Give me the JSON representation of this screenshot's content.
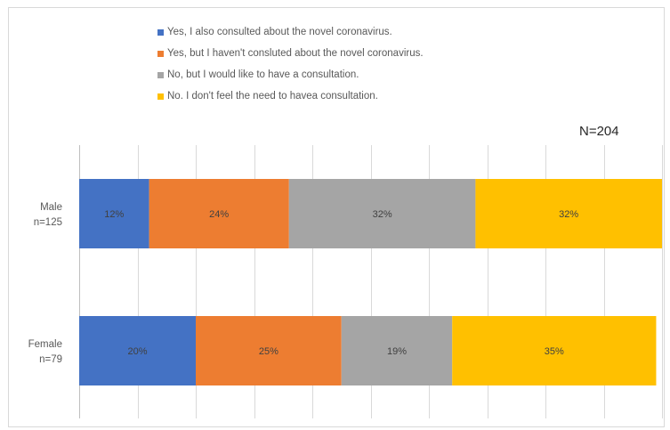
{
  "chart_data": {
    "type": "bar",
    "orientation": "horizontal",
    "stacked": true,
    "percent_stacked": true,
    "annotation": "N=204",
    "categories": [
      "Male\nn=125",
      "Female\nn=79"
    ],
    "series": [
      {
        "name": "Yes, I also consulted about the novel coronavirus.",
        "color": "#4472c4",
        "values": [
          12,
          20
        ]
      },
      {
        "name": "Yes, but I haven't consluted about the novel coronavirus.",
        "color": "#ed7d31",
        "values": [
          24,
          25
        ]
      },
      {
        "name": "No, but I would like to have a consultation.",
        "color": "#a5a5a5",
        "values": [
          32,
          19
        ]
      },
      {
        "name": "No. I don't feel the need to havea consultation.",
        "color": "#ffc000",
        "values": [
          32,
          35
        ]
      }
    ],
    "value_labels": [
      [
        "12%",
        "24%",
        "32%",
        "32%"
      ],
      [
        "20%",
        "25%",
        "19%",
        "35%"
      ]
    ],
    "xlim": [
      0,
      100
    ],
    "grid": true,
    "gridline_count": 10,
    "legend_position": "top"
  }
}
